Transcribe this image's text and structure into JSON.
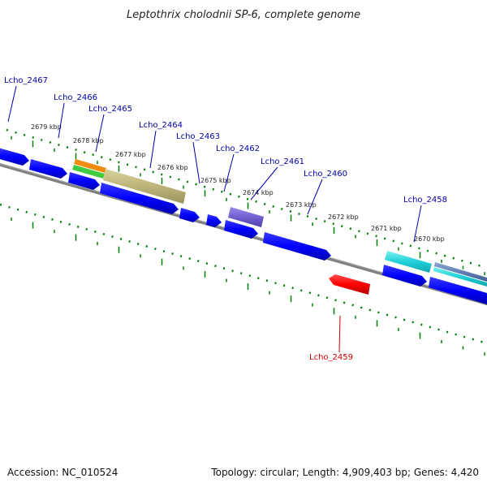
{
  "title": "Leptothrix cholodnii SP-6, complete genome",
  "footer": {
    "accession": "Accession: NC_010524",
    "summary": "Topology: circular; Length: 4,909,403 bp; Genes: 4,420"
  },
  "colors": {
    "backbone": "#808080",
    "tick": "#008000",
    "cds": "#0000ff",
    "label_forward": "#0000aa",
    "label_reverse": "#cc0000"
  },
  "ticks": [
    "2679 kbp",
    "2678 kbp",
    "2677 kbp",
    "2676 kbp",
    "2675 kbp",
    "2674 kbp",
    "2673 kbp",
    "2672 kbp",
    "2671 kbp",
    "2670 kbp"
  ],
  "genes": [
    {
      "name": "Lcho_2467",
      "strand": "forward"
    },
    {
      "name": "Lcho_2466",
      "strand": "forward"
    },
    {
      "name": "Lcho_2465",
      "strand": "forward"
    },
    {
      "name": "Lcho_2464",
      "strand": "forward"
    },
    {
      "name": "Lcho_2463",
      "strand": "forward"
    },
    {
      "name": "Lcho_2462",
      "strand": "forward"
    },
    {
      "name": "Lcho_2461",
      "strand": "forward"
    },
    {
      "name": "Lcho_2460",
      "strand": "forward"
    },
    {
      "name": "Lcho_2458",
      "strand": "forward"
    },
    {
      "name": "Lcho_2459",
      "strand": "reverse"
    }
  ]
}
